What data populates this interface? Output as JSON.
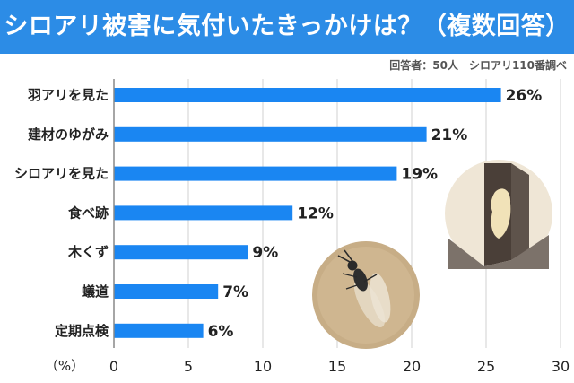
{
  "header": {
    "title": "シロアリ被害に気付いたきっかけは？（複数回答）"
  },
  "source_note": "回答者：50人　シロアリ110番調べ",
  "colors": {
    "banner": "#2c8ce6",
    "bar": "#1a86f2",
    "grid": "#d0d0d0"
  },
  "chart_data": {
    "type": "bar",
    "orientation": "horizontal",
    "categories": [
      "羽アリを見た",
      "建材のゆがみ",
      "シロアリを見た",
      "食べ跡",
      "木くず",
      "蟻道",
      "定期点検"
    ],
    "values": [
      26,
      21,
      19,
      12,
      9,
      7,
      6
    ],
    "value_labels": [
      "26%",
      "21%",
      "19%",
      "12%",
      "9%",
      "7%",
      "6%"
    ],
    "xlim": [
      0,
      30
    ],
    "xticks": [
      "0",
      "5",
      "10",
      "15",
      "20",
      "25",
      "30"
    ],
    "x_tick_values": [
      0,
      5,
      10,
      15,
      20,
      25,
      30
    ],
    "unit_label": "（%）",
    "grid": true
  }
}
